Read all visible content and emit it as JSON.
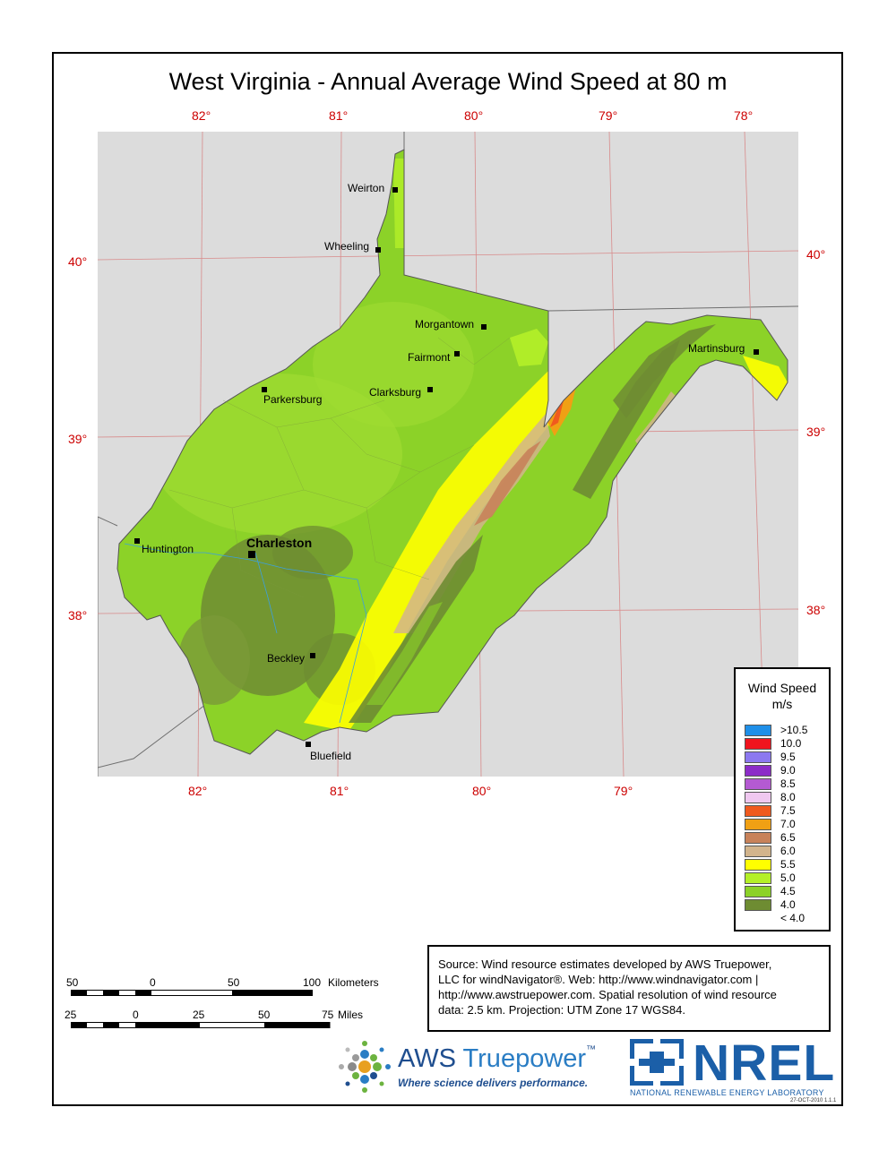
{
  "title": "West Virginia - Annual Average Wind Speed at 80 m",
  "longitude_labels": [
    "82°",
    "81°",
    "80°",
    "79°",
    "78°"
  ],
  "longitude_labels_bottom": [
    "82°",
    "81°",
    "80°",
    "79°"
  ],
  "latitude_labels": [
    "40°",
    "39°",
    "38°"
  ],
  "cities": [
    {
      "name": "Weirton",
      "bold": false
    },
    {
      "name": "Wheeling",
      "bold": false
    },
    {
      "name": "Morgantown",
      "bold": false
    },
    {
      "name": "Fairmont",
      "bold": false
    },
    {
      "name": "Clarksburg",
      "bold": false
    },
    {
      "name": "Parkersburg",
      "bold": false
    },
    {
      "name": "Martinsburg",
      "bold": false
    },
    {
      "name": "Huntington",
      "bold": false
    },
    {
      "name": "Charleston",
      "bold": true
    },
    {
      "name": "Beckley",
      "bold": false
    },
    {
      "name": "Bluefield",
      "bold": false
    }
  ],
  "legend": {
    "title_line1": "Wind Speed",
    "title_line2": "m/s",
    "items": [
      {
        "label": ">10.5",
        "color": "#1f8fe8"
      },
      {
        "label": "10.0",
        "color": "#f0141e"
      },
      {
        "label": "9.5",
        "color": "#8c78f0"
      },
      {
        "label": "9.0",
        "color": "#8c2cc8"
      },
      {
        "label": "8.5",
        "color": "#b45ad2"
      },
      {
        "label": "8.0",
        "color": "#f0c8f0"
      },
      {
        "label": "7.5",
        "color": "#f05a1e"
      },
      {
        "label": "7.0",
        "color": "#f0a014"
      },
      {
        "label": "6.5",
        "color": "#c8825a"
      },
      {
        "label": "6.0",
        "color": "#d2b48c"
      },
      {
        "label": "5.5",
        "color": "#ffff00"
      },
      {
        "label": "5.0",
        "color": "#b4f028"
      },
      {
        "label": "4.5",
        "color": "#8cd228"
      },
      {
        "label": "4.0",
        "color": "#6e8c32"
      },
      {
        "label": "< 4.0",
        "color": ""
      }
    ]
  },
  "source": {
    "line1": "Source: Wind resource estimates developed by AWS Truepower,",
    "line2": "LLC for windNavigator®. Web: http://www.windnavigator.com |",
    "line3": "http://www.awstruepower.com. Spatial resolution of wind resource",
    "line4": "data: 2.5 km. Projection: UTM Zone 17 WGS84."
  },
  "scale": {
    "km_ticks": [
      "50",
      "0",
      "50",
      "100"
    ],
    "km_unit": "Kilometers",
    "mi_ticks": [
      "25",
      "0",
      "25",
      "50",
      "75"
    ],
    "mi_unit": "Miles"
  },
  "logos": {
    "aws_name_a": "AWS ",
    "aws_name_b": "Truepower",
    "aws_tm": "™",
    "aws_tagline": "Where science delivers performance.",
    "nrel_name": "NREL",
    "nrel_full": "NATIONAL RENEWABLE ENERGY LABORATORY"
  },
  "date_code": "27-OCT-2010 1.1.1"
}
